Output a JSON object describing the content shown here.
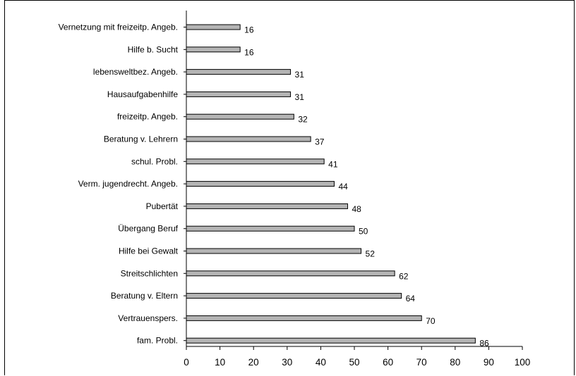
{
  "chart_data": {
    "type": "bar",
    "orientation": "horizontal",
    "title": "",
    "xlabel": "",
    "ylabel": "",
    "categories": [
      "Vernetzung mit freizeitp. Angeb.",
      "Hilfe b. Sucht",
      "lebensweltbez. Angeb.",
      "Hausaufgabenhilfe",
      "freizeitp. Angeb.",
      "Beratung v. Lehrern",
      "schul. Probl.",
      "Verm. jugendrecht. Angeb.",
      "Pubertät",
      "Übergang Beruf",
      "Hilfe bei Gewalt",
      "Streitschlichten",
      "Beratung v. Eltern",
      "Vertrauenspers.",
      "fam. Probl."
    ],
    "values": [
      16,
      16,
      31,
      31,
      32,
      37,
      41,
      44,
      48,
      50,
      52,
      62,
      64,
      70,
      86
    ],
    "value_labels": [
      "16",
      "16",
      "31",
      "31",
      "32",
      "37",
      "41",
      "44",
      "48",
      "50",
      "52",
      "62",
      "64",
      "70",
      "86"
    ],
    "xlim": [
      0,
      100
    ],
    "xticks": [
      0,
      10,
      20,
      30,
      40,
      50,
      60,
      70,
      80,
      90,
      100
    ],
    "xtick_labels": [
      "0",
      "10",
      "20",
      "30",
      "40",
      "50",
      "60",
      "70",
      "80",
      "90",
      "100"
    ],
    "grid": false,
    "legend": "none",
    "colors": {
      "bar_fill": "#b4b4b4",
      "bar_stroke": "#000000",
      "axis": "#000000"
    }
  }
}
